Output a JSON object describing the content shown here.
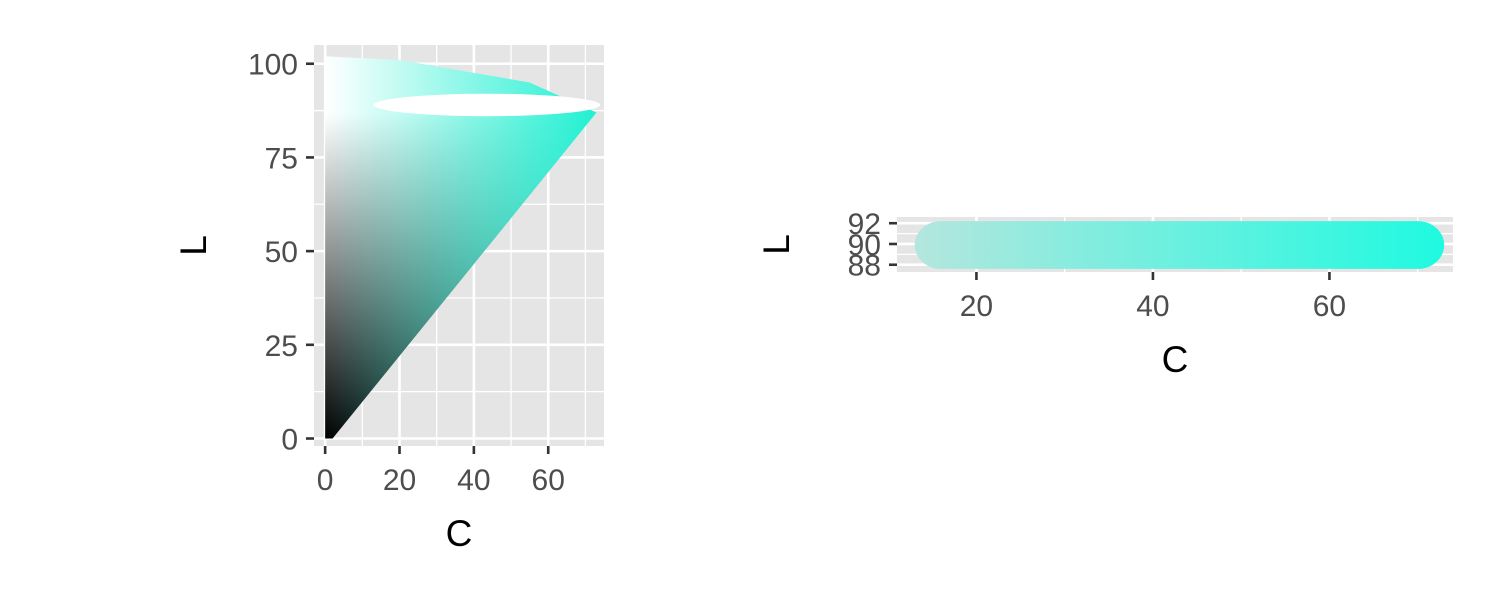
{
  "chart_data": [
    {
      "type": "scatter",
      "description_of_marks": "filled gamut region of L vs C plus white highlighted slice",
      "xlabel": "C",
      "ylabel": "L",
      "xlim": [
        -3,
        75
      ],
      "ylim": [
        -2,
        105
      ],
      "x_ticks": [
        0,
        20,
        40,
        60
      ],
      "y_ticks": [
        0,
        25,
        50,
        75,
        100
      ],
      "grid": true,
      "background": "#e5e5e5",
      "gamut_boundary": [
        {
          "C": 0,
          "L": 0
        },
        {
          "C": 2,
          "L": 0
        },
        {
          "C": 73,
          "L": 87
        },
        {
          "C": 55,
          "L": 95
        },
        {
          "C": 20,
          "L": 101
        },
        {
          "C": 0,
          "L": 102
        }
      ],
      "highlight_slice": {
        "L_min": 86,
        "L_max": 92,
        "C_min": 13,
        "C_max": 74,
        "color": "#ffffff"
      },
      "colors": {
        "dark": "#000000",
        "light": "#ffffff",
        "accent": "#21f0d2"
      }
    },
    {
      "type": "scatter",
      "xlabel": "C",
      "ylabel": "L",
      "xlim": [
        11,
        74
      ],
      "ylim": [
        87.3,
        92.6
      ],
      "x_ticks": [
        20,
        40,
        60
      ],
      "y_ticks": [
        88,
        90,
        92
      ],
      "grid": true,
      "background": "#e5e5e5",
      "band": {
        "C_min": 13,
        "C_max": 73,
        "L_min": 87.6,
        "L_max": 92.2
      },
      "colors": {
        "low_chroma": "#b4e6de",
        "high_chroma": "#1ffae0"
      }
    }
  ]
}
